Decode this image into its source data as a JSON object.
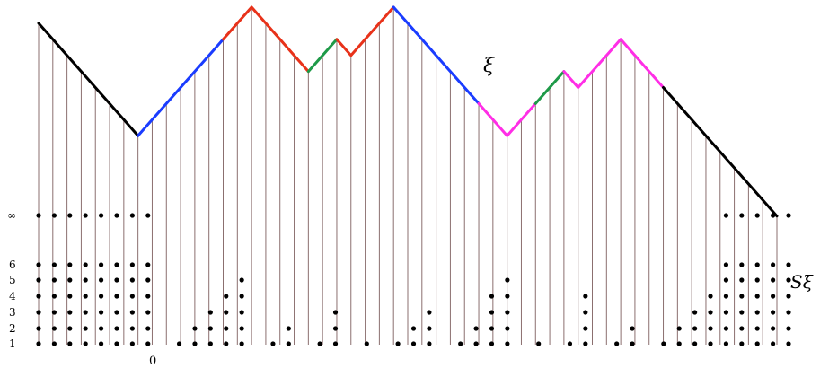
{
  "labels": {
    "xi": "ξ",
    "s_xi": "Sξ",
    "zero": "0"
  },
  "levels": [
    {
      "value": 1,
      "label": "1"
    },
    {
      "value": 2,
      "label": "2"
    },
    {
      "value": 3,
      "label": "3"
    },
    {
      "value": 4,
      "label": "4"
    },
    {
      "value": 5,
      "label": "5"
    },
    {
      "value": 6,
      "label": "6"
    },
    {
      "value": "inf",
      "label": "∞"
    }
  ],
  "colors": {
    "vertical_line": "#8b6f6f",
    "dot": "#000000",
    "black_segment": "#000000",
    "blue_segment": "#1a3cff",
    "red_segment": "#e8321a",
    "green_segment": "#1e9a48",
    "magenta_segment": "#ff2ee6"
  },
  "diagram": {
    "columns": 47,
    "zero_column": 7,
    "path_heights": [
      19,
      18,
      17,
      16,
      15,
      14,
      13,
      12,
      13,
      14,
      15,
      16,
      17,
      18,
      19,
      20,
      19,
      18,
      17,
      16,
      17,
      18,
      17,
      18,
      19,
      20,
      19,
      18,
      17,
      16,
      15,
      14,
      13,
      12,
      13,
      14,
      15,
      16,
      15,
      16,
      17,
      18,
      17,
      16,
      15,
      14,
      13,
      12,
      11,
      10,
      9,
      8,
      7
    ],
    "path_segments": [
      {
        "from": 0,
        "to": 7,
        "color": "black_segment"
      },
      {
        "from": 7,
        "to": 13,
        "color": "blue_segment"
      },
      {
        "from": 13,
        "to": 17,
        "color": "red_segment"
      },
      {
        "from": 17,
        "to": 19,
        "color": "red_segment"
      },
      {
        "from": 19,
        "to": 21,
        "color": "green_segment"
      },
      {
        "from": 21,
        "to": 23,
        "color": "red_segment"
      },
      {
        "from": 23,
        "to": 25,
        "color": "red_segment"
      },
      {
        "from": 25,
        "to": 31,
        "color": "blue_segment"
      },
      {
        "from": 31,
        "to": 35,
        "color": "magenta_segment"
      },
      {
        "from": 35,
        "to": 37,
        "color": "green_segment"
      },
      {
        "from": 37,
        "to": 41,
        "color": "magenta_segment"
      },
      {
        "from": 41,
        "to": 44,
        "color": "magenta_segment"
      },
      {
        "from": 44,
        "to": 52,
        "color": "black_segment"
      }
    ],
    "stacks": [
      7,
      7,
      7,
      7,
      7,
      7,
      7,
      7,
      0,
      1,
      2,
      3,
      4,
      5,
      0,
      1,
      2,
      0,
      1,
      3,
      0,
      1,
      0,
      1,
      2,
      3,
      0,
      1,
      2,
      4,
      5,
      0,
      1,
      0,
      1,
      4,
      0,
      1,
      2,
      0,
      1,
      2,
      3,
      4,
      7,
      7,
      7,
      7,
      7
    ]
  }
}
